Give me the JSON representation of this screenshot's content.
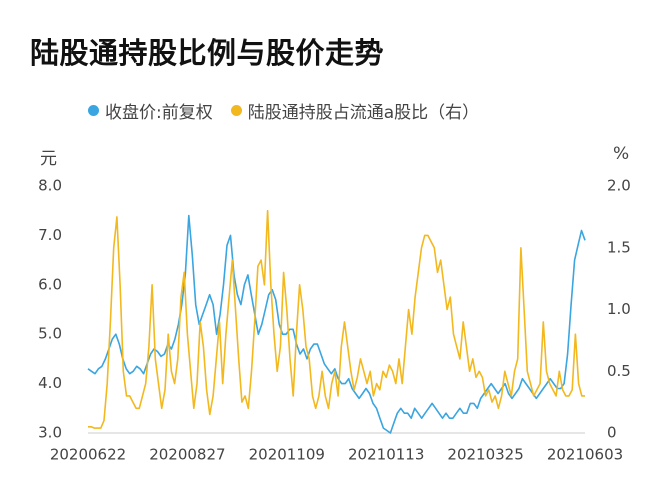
{
  "chart_data": {
    "type": "line",
    "title": "陆股通持股比例与股价走势",
    "left_unit": "元",
    "right_unit": "%",
    "ylim_left": [
      3.0,
      8.0
    ],
    "ylim_right": [
      0,
      2.0
    ],
    "y_ticks_left": [
      "3.0",
      "4.0",
      "5.0",
      "6.0",
      "7.0",
      "8.0"
    ],
    "y_ticks_right": [
      "0",
      "0.5",
      "1.0",
      "1.5",
      "2.0"
    ],
    "x_tick_labels": [
      "20200622",
      "20200827",
      "20201109",
      "20210113",
      "20210325",
      "20210603"
    ],
    "legend_position": "top",
    "grid": false,
    "series": [
      {
        "name": "收盘价:前复权",
        "axis": "left",
        "color": "#3aa5e0",
        "values": [
          4.3,
          4.25,
          4.2,
          4.3,
          4.35,
          4.5,
          4.7,
          4.9,
          5.0,
          4.8,
          4.5,
          4.3,
          4.2,
          4.25,
          4.35,
          4.3,
          4.2,
          4.4,
          4.6,
          4.7,
          4.65,
          4.55,
          4.6,
          4.8,
          4.7,
          4.9,
          5.2,
          5.6,
          6.2,
          7.4,
          6.6,
          5.6,
          5.2,
          5.4,
          5.6,
          5.8,
          5.6,
          5.0,
          5.4,
          6.0,
          6.8,
          7.0,
          6.2,
          5.8,
          5.6,
          6.0,
          6.2,
          5.8,
          5.4,
          5.0,
          5.2,
          5.5,
          5.8,
          5.9,
          5.7,
          5.2,
          5.0,
          5.0,
          5.1,
          5.1,
          4.8,
          4.6,
          4.7,
          4.5,
          4.7,
          4.8,
          4.8,
          4.6,
          4.4,
          4.3,
          4.2,
          4.3,
          4.1,
          4.0,
          4.0,
          4.1,
          3.9,
          3.8,
          3.7,
          3.8,
          3.9,
          3.8,
          3.6,
          3.5,
          3.3,
          3.1,
          3.05,
          3.0,
          3.2,
          3.4,
          3.5,
          3.4,
          3.4,
          3.3,
          3.5,
          3.4,
          3.3,
          3.4,
          3.5,
          3.6,
          3.5,
          3.4,
          3.3,
          3.4,
          3.3,
          3.3,
          3.4,
          3.5,
          3.4,
          3.4,
          3.6,
          3.6,
          3.5,
          3.7,
          3.8,
          3.9,
          4.0,
          3.9,
          3.8,
          3.9,
          4.0,
          3.8,
          3.7,
          3.8,
          3.9,
          4.1,
          4.0,
          3.9,
          3.8,
          3.7,
          3.8,
          3.9,
          4.0,
          4.1,
          4.0,
          3.9,
          3.9,
          4.0,
          4.6,
          5.6,
          6.5,
          6.8,
          7.1,
          6.9
        ]
      },
      {
        "name": "陆股通持股占流通a股比（右）",
        "axis": "right",
        "color": "#f2b81e",
        "values": [
          0.05,
          0.05,
          0.04,
          0.04,
          0.04,
          0.1,
          0.4,
          0.9,
          1.5,
          1.75,
          1.2,
          0.5,
          0.3,
          0.3,
          0.25,
          0.2,
          0.2,
          0.3,
          0.4,
          0.7,
          1.2,
          0.6,
          0.4,
          0.2,
          0.35,
          0.8,
          0.5,
          0.4,
          0.6,
          1.1,
          1.3,
          0.8,
          0.5,
          0.2,
          0.4,
          0.9,
          0.7,
          0.35,
          0.15,
          0.3,
          0.6,
          0.9,
          0.4,
          0.8,
          1.1,
          1.4,
          1.0,
          0.6,
          0.25,
          0.3,
          0.2,
          0.5,
          0.9,
          1.35,
          1.4,
          1.2,
          1.8,
          1.2,
          0.8,
          0.5,
          0.7,
          1.3,
          1.0,
          0.6,
          0.3,
          0.8,
          1.2,
          1.0,
          0.7,
          0.6,
          0.3,
          0.2,
          0.3,
          0.5,
          0.3,
          0.2,
          0.4,
          0.5,
          0.3,
          0.7,
          0.9,
          0.7,
          0.5,
          0.35,
          0.45,
          0.6,
          0.5,
          0.4,
          0.5,
          0.3,
          0.4,
          0.35,
          0.5,
          0.45,
          0.55,
          0.5,
          0.4,
          0.6,
          0.4,
          0.7,
          1.0,
          0.8,
          1.1,
          1.3,
          1.5,
          1.6,
          1.6,
          1.55,
          1.5,
          1.3,
          1.4,
          1.2,
          1.0,
          1.1,
          0.8,
          0.7,
          0.6,
          0.9,
          0.7,
          0.5,
          0.6,
          0.45,
          0.5,
          0.45,
          0.3,
          0.35,
          0.25,
          0.3,
          0.2,
          0.3,
          0.5,
          0.4,
          0.3,
          0.5,
          0.6,
          1.5,
          1.0,
          0.5,
          0.4,
          0.3,
          0.35,
          0.4,
          0.9,
          0.5,
          0.4,
          0.35,
          0.3,
          0.5,
          0.35,
          0.3,
          0.3,
          0.35,
          0.8,
          0.4,
          0.3,
          0.3
        ]
      }
    ]
  }
}
